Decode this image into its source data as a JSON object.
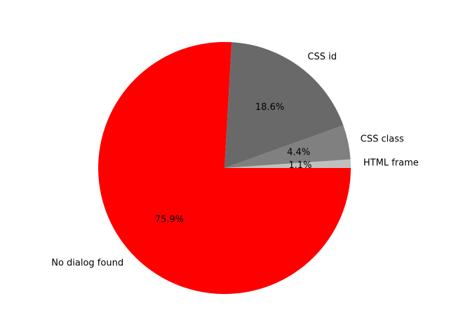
{
  "chart_data": {
    "type": "pie",
    "title": "",
    "start_angle_deg": 0,
    "direction": "counterclockwise",
    "slices": [
      {
        "label": "HTML frame",
        "percent_label": "1.1%",
        "value": 1.1,
        "color": "#c0c0c0"
      },
      {
        "label": "CSS class",
        "percent_label": "4.4%",
        "value": 4.4,
        "color": "#808080"
      },
      {
        "label": "CSS id",
        "percent_label": "18.6%",
        "value": 18.6,
        "color": "#696969"
      },
      {
        "label": "No dialog found",
        "percent_label": "75.9%",
        "value": 75.9,
        "color": "#ff0000"
      }
    ]
  }
}
